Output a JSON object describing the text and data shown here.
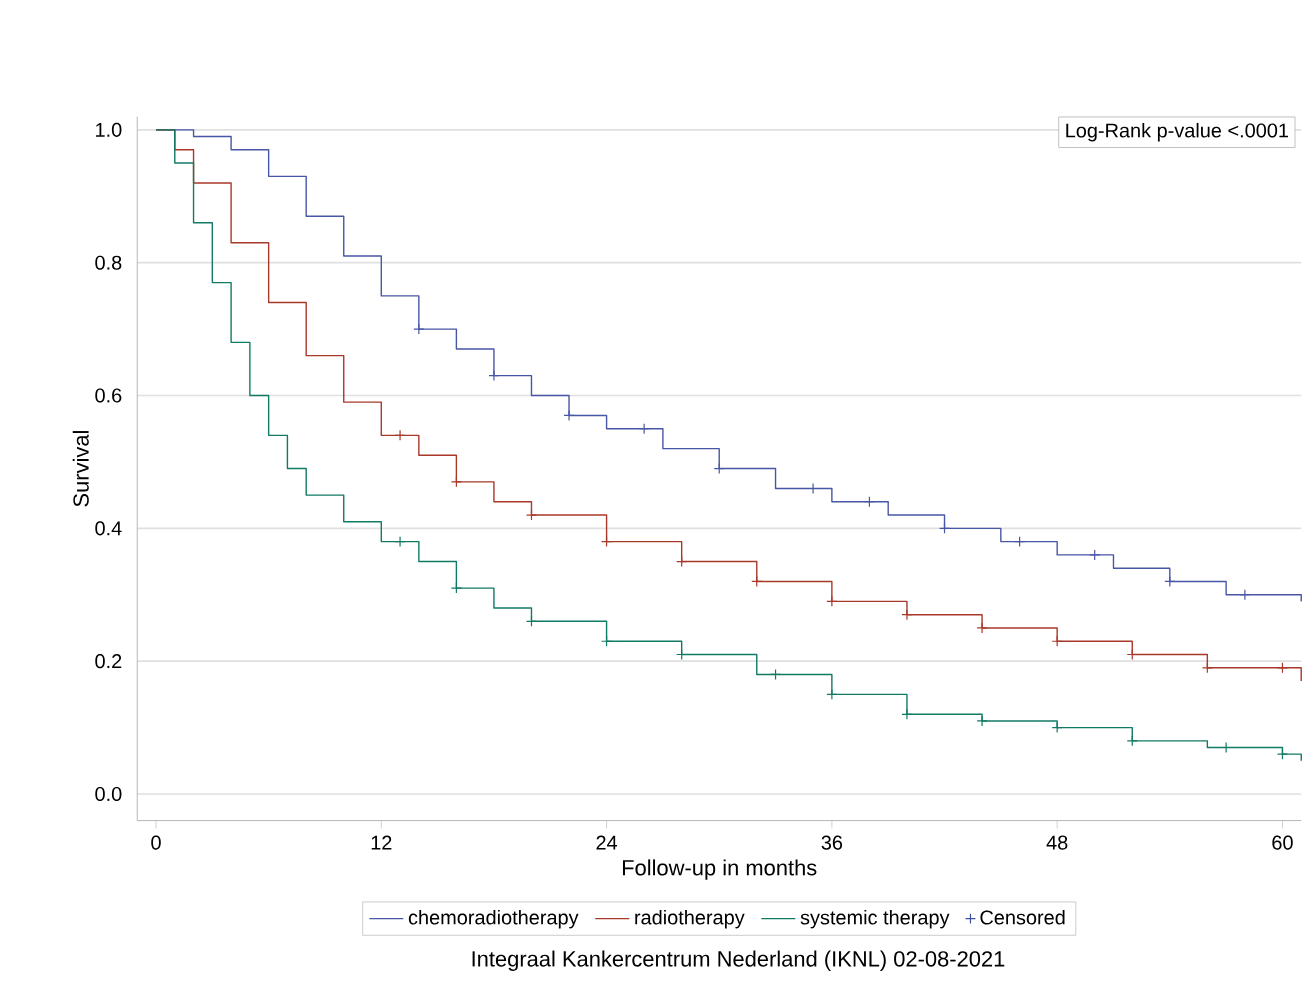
{
  "chart_data": {
    "type": "step",
    "xlabel": "Follow-up in months",
    "ylabel": "Survival",
    "xlim": [
      -1,
      61
    ],
    "ylim": [
      -0.04,
      1.02
    ],
    "xticks": [
      0,
      12,
      24,
      36,
      48,
      60
    ],
    "yticks": [
      {
        "value": 0,
        "label": "0.0"
      },
      {
        "value": 0.2,
        "label": "0.2"
      },
      {
        "value": 0.4,
        "label": "0.4"
      },
      {
        "value": 0.6,
        "label": "0.6"
      },
      {
        "value": 0.8,
        "label": "0.8"
      },
      {
        "value": 1,
        "label": "1.0"
      }
    ],
    "grid": "y",
    "legend": "bottom",
    "annotations": [
      "Log-Rank p-value   <.0001",
      "Integraal Kankercentrum Nederland (IKNL)  02-08-2021"
    ],
    "series": [
      {
        "name": "chemoradiotherapy",
        "color": "#4856a6",
        "x": [
          0,
          2,
          4,
          6,
          8,
          10,
          12,
          14,
          16,
          18,
          20,
          22,
          24,
          27,
          30,
          33,
          36,
          39,
          42,
          45,
          48,
          51,
          54,
          57,
          61
        ],
        "values": [
          1.0,
          0.99,
          0.97,
          0.93,
          0.87,
          0.81,
          0.75,
          0.7,
          0.67,
          0.63,
          0.6,
          0.57,
          0.55,
          0.52,
          0.49,
          0.46,
          0.44,
          0.42,
          0.4,
          0.38,
          0.36,
          0.34,
          0.32,
          0.3,
          0.29
        ]
      },
      {
        "name": "radiotherapy",
        "color": "#a8382a",
        "x": [
          0,
          1,
          2,
          4,
          6,
          8,
          10,
          12,
          14,
          16,
          18,
          20,
          24,
          28,
          32,
          36,
          40,
          44,
          48,
          52,
          56,
          61
        ],
        "values": [
          1.0,
          0.97,
          0.92,
          0.83,
          0.74,
          0.66,
          0.59,
          0.54,
          0.51,
          0.47,
          0.44,
          0.42,
          0.38,
          0.35,
          0.32,
          0.29,
          0.27,
          0.25,
          0.23,
          0.21,
          0.19,
          0.17
        ]
      },
      {
        "name": "systemic therapy",
        "color": "#117a65",
        "x": [
          0,
          1,
          2,
          3,
          4,
          5,
          6,
          7,
          8,
          10,
          12,
          14,
          16,
          18,
          20,
          24,
          28,
          32,
          36,
          40,
          44,
          48,
          52,
          56,
          60,
          61
        ],
        "values": [
          1.0,
          0.95,
          0.86,
          0.77,
          0.68,
          0.6,
          0.54,
          0.49,
          0.45,
          0.41,
          0.38,
          0.35,
          0.31,
          0.28,
          0.26,
          0.23,
          0.21,
          0.18,
          0.15,
          0.12,
          0.11,
          0.1,
          0.08,
          0.07,
          0.06,
          0.05
        ]
      },
      {
        "name": "Censored",
        "type": "scatter",
        "marker": "cross",
        "color": "#3f4fa0",
        "x": [
          14,
          18,
          22,
          26,
          30,
          35,
          38,
          42,
          46,
          50,
          54,
          58,
          13,
          16,
          20,
          24,
          28,
          32,
          36,
          40,
          44,
          48,
          52,
          56,
          60,
          13,
          16,
          20,
          24,
          28,
          33,
          36,
          40,
          44,
          48,
          52,
          57,
          60
        ],
        "values": [
          0.7,
          0.63,
          0.57,
          0.55,
          0.49,
          0.46,
          0.44,
          0.4,
          0.38,
          0.36,
          0.32,
          0.3,
          0.54,
          0.47,
          0.42,
          0.38,
          0.35,
          0.32,
          0.29,
          0.27,
          0.25,
          0.23,
          0.21,
          0.19,
          0.19,
          0.38,
          0.31,
          0.26,
          0.23,
          0.21,
          0.18,
          0.15,
          0.12,
          0.11,
          0.1,
          0.08,
          0.07,
          0.06
        ],
        "colors": [
          "#4856a6",
          "#4856a6",
          "#4856a6",
          "#4856a6",
          "#4856a6",
          "#4856a6",
          "#4856a6",
          "#4856a6",
          "#4856a6",
          "#4856a6",
          "#4856a6",
          "#4856a6",
          "#a8382a",
          "#a8382a",
          "#a8382a",
          "#a8382a",
          "#a8382a",
          "#a8382a",
          "#a8382a",
          "#a8382a",
          "#a8382a",
          "#a8382a",
          "#a8382a",
          "#a8382a",
          "#a8382a",
          "#117a65",
          "#117a65",
          "#117a65",
          "#117a65",
          "#117a65",
          "#117a65",
          "#117a65",
          "#117a65",
          "#117a65",
          "#117a65",
          "#117a65",
          "#117a65",
          "#117a65"
        ]
      }
    ]
  }
}
